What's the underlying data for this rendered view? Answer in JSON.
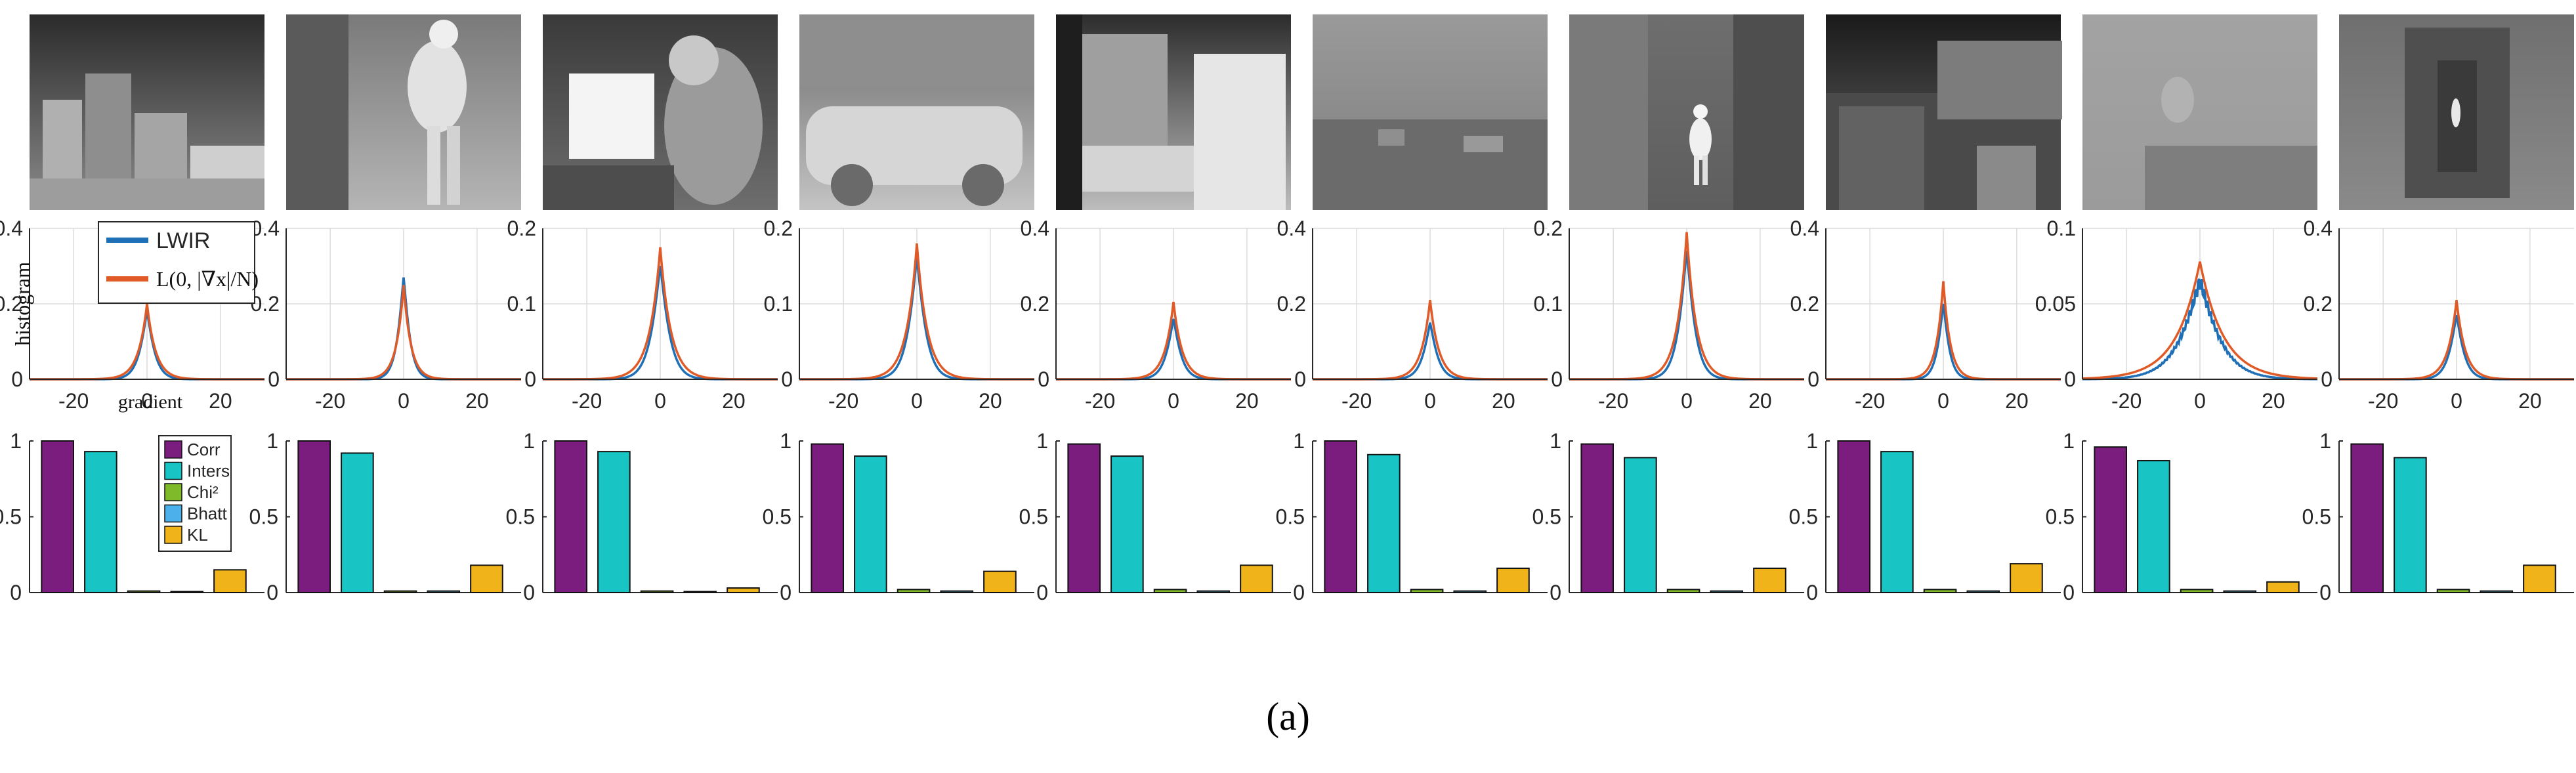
{
  "caption": "(a)",
  "colors": {
    "lwir": "#1f6fb6",
    "laplace": "#e05a28",
    "grid": "#dcdcdc",
    "axis": "#262626",
    "metrics": [
      "#7b1c7f",
      "#19c4c4",
      "#7fba2b",
      "#4cb0ea",
      "#f0b41a"
    ]
  },
  "thumbnails": [
    {
      "name": "city-skyline-night",
      "description_icon": "thermal-image"
    },
    {
      "name": "person-in-doorway",
      "description_icon": "thermal-image"
    },
    {
      "name": "person-at-monitor",
      "description_icon": "thermal-image"
    },
    {
      "name": "parked-car-fence",
      "description_icon": "thermal-image"
    },
    {
      "name": "cluttered-storage",
      "description_icon": "thermal-image"
    },
    {
      "name": "hazy-rooftops",
      "description_icon": "thermal-image"
    },
    {
      "name": "person-in-corridor",
      "description_icon": "thermal-image"
    },
    {
      "name": "city-buildings",
      "description_icon": "thermal-image"
    },
    {
      "name": "person-on-bench",
      "description_icon": "thermal-image"
    },
    {
      "name": "dark-corridor",
      "description_icon": "thermal-image"
    }
  ],
  "chart_data": [
    {
      "type": "line",
      "title": "",
      "xlabel": "gradient",
      "ylabel": "histogram",
      "xlim": [
        -32,
        32
      ],
      "xticks": [
        "-20",
        "0",
        "20"
      ],
      "xtick_values": [
        -20,
        0,
        20
      ],
      "grid": true,
      "legend": {
        "position": "top-left",
        "entries": [
          "LWIR",
          "L(0, |∇x|/N)"
        ]
      },
      "series_names": [
        "LWIR",
        "L(0, |∇x|/N)"
      ],
      "panels": [
        {
          "ylim": [
            0,
            0.4
          ],
          "yticks": [
            "0",
            "0.2",
            "0.4"
          ],
          "lwir_peak": 0.18,
          "laplace_peak": 0.2,
          "laplace_scale": 2.4
        },
        {
          "ylim": [
            0,
            0.4
          ],
          "yticks": [
            "0",
            "0.2",
            "0.4"
          ],
          "lwir_peak": 0.27,
          "laplace_peak": 0.25,
          "laplace_scale": 2.0
        },
        {
          "ylim": [
            0,
            0.2
          ],
          "yticks": [
            "0",
            "0.1",
            "0.2"
          ],
          "lwir_peak": 0.15,
          "laplace_peak": 0.175,
          "laplace_scale": 2.9
        },
        {
          "ylim": [
            0,
            0.2
          ],
          "yticks": [
            "0",
            "0.1",
            "0.2"
          ],
          "lwir_peak": 0.16,
          "laplace_peak": 0.18,
          "laplace_scale": 2.8
        },
        {
          "ylim": [
            0,
            0.4
          ],
          "yticks": [
            "0",
            "0.2",
            "0.4"
          ],
          "lwir_peak": 0.16,
          "laplace_peak": 0.205,
          "laplace_scale": 2.4
        },
        {
          "ylim": [
            0,
            0.4
          ],
          "yticks": [
            "0",
            "0.2",
            "0.4"
          ],
          "lwir_peak": 0.15,
          "laplace_peak": 0.21,
          "laplace_scale": 2.4
        },
        {
          "ylim": [
            0,
            0.2
          ],
          "yticks": [
            "0",
            "0.1",
            "0.2"
          ],
          "lwir_peak": 0.17,
          "laplace_peak": 0.195,
          "laplace_scale": 2.6
        },
        {
          "ylim": [
            0,
            0.4
          ],
          "yticks": [
            "0",
            "0.2",
            "0.4"
          ],
          "lwir_peak": 0.2,
          "laplace_peak": 0.26,
          "laplace_scale": 1.9
        },
        {
          "ylim": [
            0,
            0.1
          ],
          "yticks": [
            "0",
            "0.05",
            "0.1"
          ],
          "lwir_peak": 0.065,
          "laplace_peak": 0.078,
          "laplace_scale": 6.4,
          "noisy": true
        },
        {
          "ylim": [
            0,
            0.4
          ],
          "yticks": [
            "0",
            "0.2",
            "0.4"
          ],
          "lwir_peak": 0.17,
          "laplace_peak": 0.21,
          "laplace_scale": 2.4
        }
      ]
    },
    {
      "type": "bar",
      "title": "",
      "categories": [
        "Corr",
        "Inters",
        "Chi²",
        "Bhatt",
        "KL"
      ],
      "legend": {
        "position": "top-right",
        "entries": [
          "Corr",
          "Inters",
          "Chi²",
          "Bhatt",
          "KL"
        ]
      },
      "ylim": [
        0,
        1
      ],
      "yticks": [
        "0",
        "0.5",
        "1"
      ],
      "panels": [
        {
          "values": [
            1.0,
            0.93,
            0.01,
            0.0,
            0.15
          ]
        },
        {
          "values": [
            1.0,
            0.92,
            0.01,
            0.01,
            0.18
          ]
        },
        {
          "values": [
            1.0,
            0.93,
            0.01,
            0.0,
            0.03
          ]
        },
        {
          "values": [
            0.98,
            0.9,
            0.02,
            0.01,
            0.14
          ]
        },
        {
          "values": [
            0.98,
            0.9,
            0.02,
            0.01,
            0.18
          ]
        },
        {
          "values": [
            1.0,
            0.91,
            0.02,
            0.01,
            0.16
          ]
        },
        {
          "values": [
            0.98,
            0.89,
            0.02,
            0.01,
            0.16
          ]
        },
        {
          "values": [
            1.0,
            0.93,
            0.02,
            0.01,
            0.19
          ]
        },
        {
          "values": [
            0.96,
            0.87,
            0.02,
            0.01,
            0.07
          ]
        },
        {
          "values": [
            0.98,
            0.89,
            0.02,
            0.01,
            0.18
          ]
        }
      ]
    }
  ]
}
